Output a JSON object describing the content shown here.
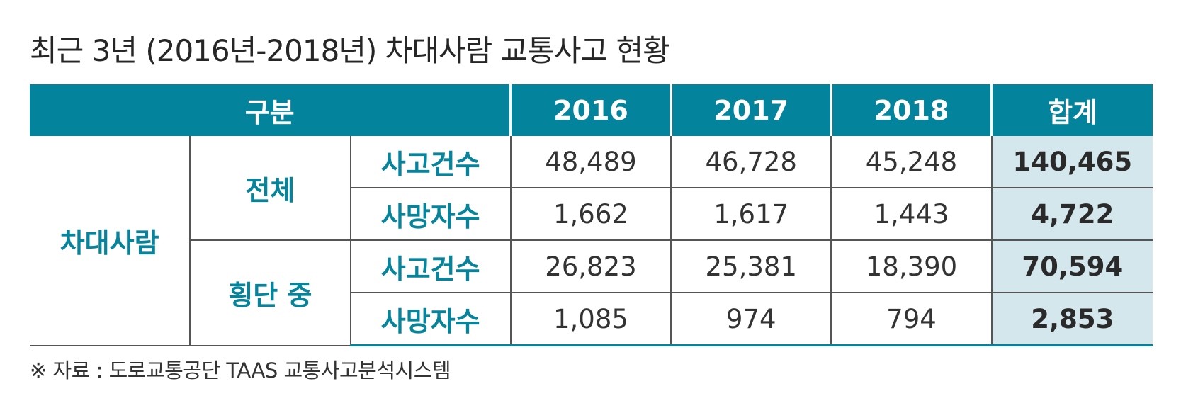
{
  "title": "최근 3년 (2016년-2018년) 차대사람 교통사고 현황",
  "table": {
    "header": {
      "category": "구분",
      "years": [
        "2016",
        "2017",
        "2018"
      ],
      "total": "합계"
    },
    "group": "차대사람",
    "sections": [
      {
        "name": "전체",
        "rows": [
          {
            "label": "사고건수",
            "values": [
              "48,489",
              "46,728",
              "45,248"
            ],
            "total": "140,465"
          },
          {
            "label": "사망자수",
            "values": [
              "1,662",
              "1,617",
              "1,443"
            ],
            "total": "4,722"
          }
        ]
      },
      {
        "name": "횡단 중",
        "rows": [
          {
            "label": "사고건수",
            "values": [
              "26,823",
              "25,381",
              "18,390"
            ],
            "total": "70,594"
          },
          {
            "label": "사망자수",
            "values": [
              "1,085",
              "974",
              "794"
            ],
            "total": "2,853"
          }
        ]
      }
    ]
  },
  "source": "※ 자료 : 도로교통공단 TAAS 교통사고분석시스템",
  "colors": {
    "header_bg": "#04849c",
    "label_text": "#05849c",
    "total_bg": "#d4e7ec"
  }
}
